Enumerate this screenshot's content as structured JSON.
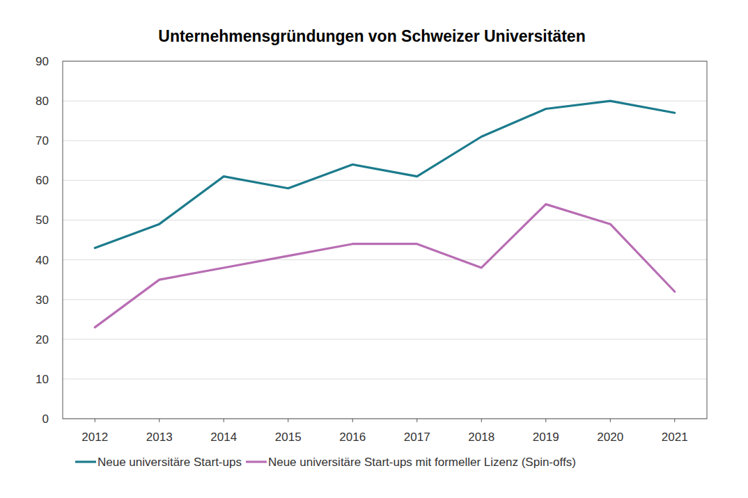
{
  "chart_data": {
    "type": "line",
    "title": "Unternehmensgründungen von Schweizer Universitäten",
    "categories": [
      "2012",
      "2013",
      "2014",
      "2015",
      "2016",
      "2017",
      "2018",
      "2019",
      "2020",
      "2021"
    ],
    "series": [
      {
        "name": "Neue universitäre Start-ups",
        "color": "#1b7b8c",
        "values": [
          43,
          49,
          61,
          58,
          64,
          61,
          71,
          78,
          80,
          77
        ]
      },
      {
        "name": "Neue universitäre Start-ups mit formeller Lizenz (Spin-offs)",
        "color": "#b86db3",
        "values": [
          23,
          35,
          38,
          41,
          44,
          44,
          38,
          54,
          49,
          32
        ]
      }
    ],
    "ylim": [
      0,
      90
    ],
    "yticks": [
      0,
      10,
      20,
      30,
      40,
      50,
      60,
      70,
      80,
      90
    ],
    "grid": true,
    "legend": "bottom"
  }
}
